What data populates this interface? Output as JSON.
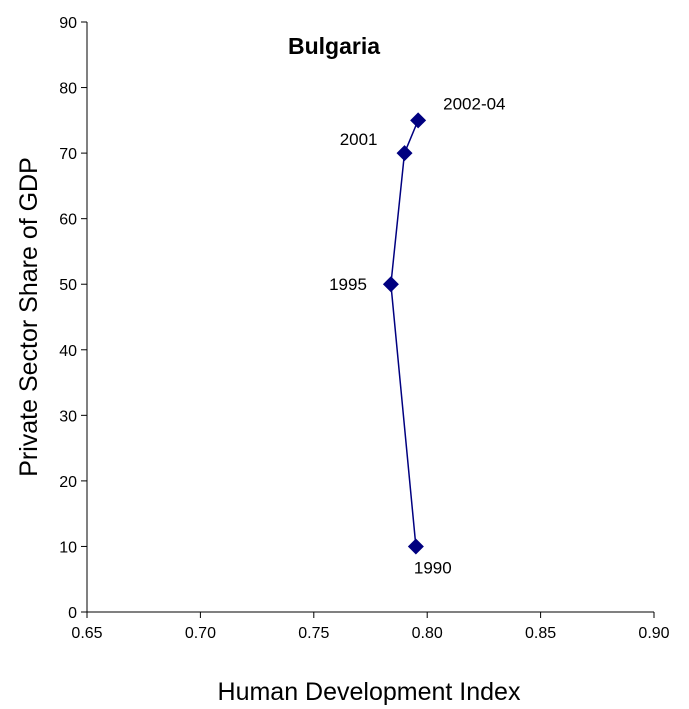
{
  "chart_data": {
    "type": "line",
    "title": "Bulgaria",
    "xlabel": "Human Development Index",
    "ylabel": "Private Sector Share of GDP",
    "xlim": [
      0.65,
      0.9
    ],
    "ylim": [
      0,
      90
    ],
    "x_ticks": [
      "0.65",
      "0.70",
      "0.75",
      "0.80",
      "0.85",
      "0.90"
    ],
    "y_ticks": [
      "0",
      "10",
      "20",
      "30",
      "40",
      "50",
      "60",
      "70",
      "80",
      "90"
    ],
    "grid": false,
    "legend": "none",
    "series": [
      {
        "color": "#000080",
        "marker": "diamond",
        "points": [
          {
            "label": "1990",
            "x": 0.795,
            "y": 10
          },
          {
            "label": "1995",
            "x": 0.784,
            "y": 50
          },
          {
            "label": "2001",
            "x": 0.79,
            "y": 70
          },
          {
            "label": "2002-04",
            "x": 0.796,
            "y": 75
          }
        ]
      }
    ]
  }
}
